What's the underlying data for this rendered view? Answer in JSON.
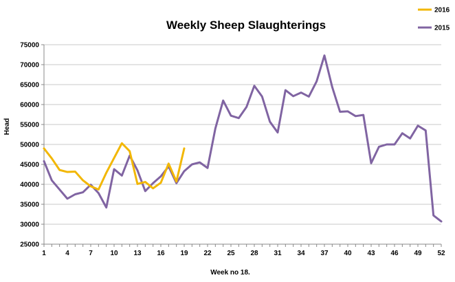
{
  "chart_data": {
    "type": "line",
    "title": "Weekly Sheep Slaughterings",
    "xlabel": "Week no 18.",
    "ylabel": "Head",
    "ylim": [
      25000,
      75000
    ],
    "yticks": [
      25000,
      30000,
      35000,
      40000,
      45000,
      50000,
      55000,
      60000,
      65000,
      70000,
      75000
    ],
    "xlim": [
      1,
      52
    ],
    "xticks": [
      1,
      4,
      7,
      10,
      13,
      16,
      19,
      22,
      25,
      28,
      31,
      34,
      37,
      40,
      43,
      46,
      49,
      52
    ],
    "grid": "horizontal",
    "legend_position": "top-right",
    "series": [
      {
        "name": "2016",
        "color": "#F2B705",
        "x": [
          1,
          2,
          3,
          4,
          5,
          6,
          7,
          8,
          9,
          10,
          11,
          12,
          13,
          14,
          15,
          16,
          17,
          18,
          19
        ],
        "values": [
          49000,
          46500,
          43600,
          43100,
          43200,
          41000,
          39500,
          38700,
          42900,
          46600,
          50300,
          48300,
          40100,
          40600,
          39000,
          40400,
          45200,
          40700,
          49000
        ]
      },
      {
        "name": "2015",
        "color": "#8064A2",
        "x": [
          1,
          2,
          3,
          4,
          5,
          6,
          7,
          8,
          9,
          10,
          11,
          12,
          13,
          14,
          15,
          16,
          17,
          18,
          19,
          20,
          21,
          22,
          23,
          24,
          25,
          26,
          27,
          28,
          29,
          30,
          31,
          32,
          33,
          34,
          35,
          36,
          37,
          38,
          39,
          40,
          41,
          42,
          43,
          44,
          45,
          46,
          47,
          48,
          49,
          50,
          51,
          52
        ],
        "values": [
          45800,
          41000,
          38700,
          36400,
          37500,
          38000,
          39900,
          37800,
          34200,
          43800,
          42200,
          47200,
          43500,
          38300,
          40300,
          42000,
          44500,
          40300,
          43300,
          45000,
          45500,
          44100,
          54000,
          61000,
          57200,
          56600,
          59400,
          64700,
          62000,
          55700,
          53000,
          63600,
          62100,
          63000,
          62000,
          65800,
          72300,
          64400,
          58200,
          58300,
          57100,
          57400,
          45300,
          49400,
          50000,
          50000,
          52800,
          51500,
          54700,
          53500,
          32200,
          30700
        ]
      }
    ]
  }
}
